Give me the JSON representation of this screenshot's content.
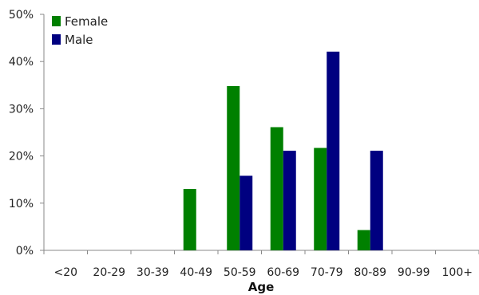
{
  "chart_data": {
    "type": "bar",
    "xlabel": "Age",
    "ylabel": "",
    "categories": [
      "<20",
      "20-29",
      "30-39",
      "40-49",
      "50-59",
      "60-69",
      "70-79",
      "80-89",
      "90-99",
      "100+"
    ],
    "series": [
      {
        "name": "Female",
        "color": "#008000",
        "values": [
          0,
          0,
          0,
          13,
          34.8,
          26.1,
          21.7,
          4.3,
          0,
          0
        ]
      },
      {
        "name": "Male",
        "color": "#000080",
        "values": [
          0,
          0,
          0,
          0,
          15.8,
          21.1,
          42.1,
          21.1,
          0,
          0
        ]
      }
    ],
    "ylim": [
      0,
      50
    ],
    "yticks": [
      0,
      10,
      20,
      30,
      40,
      50
    ],
    "ytick_labels": [
      "0%",
      "10%",
      "20%",
      "30%",
      "40%",
      "50%"
    ],
    "legend": "top-left",
    "grid": false
  }
}
